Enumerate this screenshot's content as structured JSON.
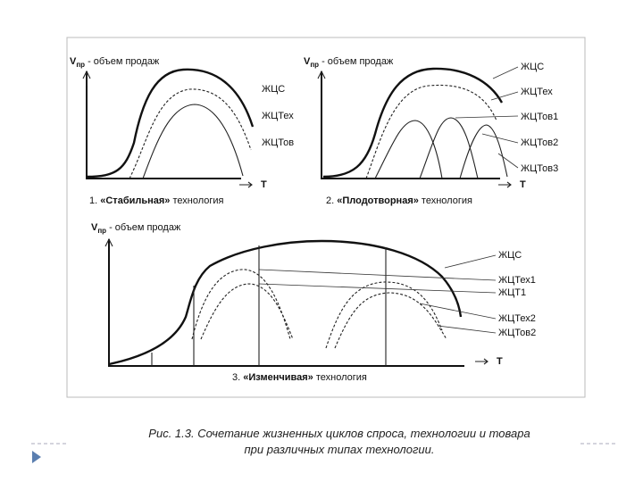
{
  "panels": [
    {
      "axis": {
        "symbol": "V",
        "sub": "пр",
        "text": "- объем продаж",
        "x": "T"
      },
      "labels": [
        "ЖЦС",
        "ЖЦТех",
        "ЖЦТов"
      ],
      "caption": {
        "number": "1.",
        "name": "«Стабильная»",
        "rest": "технология"
      }
    },
    {
      "axis": {
        "symbol": "V",
        "sub": "пр",
        "text": "- объем продаж",
        "x": "T"
      },
      "labels": [
        "ЖЦС",
        "ЖЦТех",
        "ЖЦТов1",
        "ЖЦТов2",
        "ЖЦТов3"
      ],
      "caption": {
        "number": "2.",
        "name": "«Плодотворная»",
        "rest": "технология"
      }
    },
    {
      "axis": {
        "symbol": "V",
        "sub": "пр",
        "text": "- объем продаж",
        "x": "T"
      },
      "labels": [
        "ЖЦС",
        "ЖЦТех1",
        "ЖЦТ1",
        "ЖЦТех2",
        "ЖЦТов2"
      ],
      "caption": {
        "number": "3.",
        "name": "«Изменчивая»",
        "rest": "технология"
      }
    }
  ],
  "figure_caption": [
    "Рис. 1.3. Сочетание жизненных циклов спроса, технологии и товара",
    "при различных типах технологии."
  ]
}
